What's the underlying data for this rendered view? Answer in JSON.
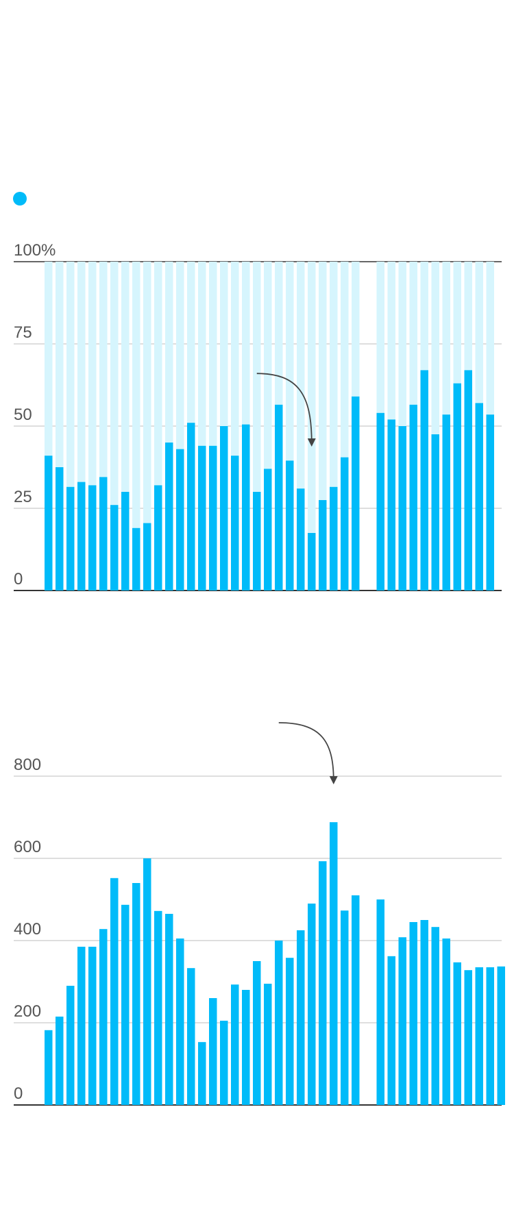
{
  "colors": {
    "bar": "#00bbf9",
    "track": "#d6f5fd",
    "grid": "#bdbdbd",
    "axis": "#333333",
    "text": "#555555",
    "arrow": "#444444",
    "legend_dot": "#00bbf9"
  },
  "legend": {
    "marker": "dot"
  },
  "chart_data": [
    {
      "type": "bar",
      "stacked_background": true,
      "ylim": [
        0,
        100
      ],
      "yticks": [
        0,
        25,
        50,
        75,
        100
      ],
      "ytick_labels": [
        "0",
        "25",
        "50",
        "75",
        "100%"
      ],
      "gap_after_index": 28,
      "values": [
        41,
        37.5,
        31.5,
        33,
        32,
        34.5,
        26,
        30,
        19,
        20.5,
        32,
        45,
        43,
        51,
        44,
        44,
        50,
        41,
        50.5,
        30,
        37,
        56.5,
        39.5,
        31,
        17.5,
        27.5,
        31.5,
        40.5,
        59,
        54,
        52,
        50,
        56.5,
        67,
        47.5,
        53.5,
        63,
        67,
        57,
        53.5
      ],
      "annotation": {
        "type": "arrow",
        "from_index": 19,
        "to_index": 24,
        "start_value": 66,
        "end_value": 45
      }
    },
    {
      "type": "bar",
      "ylim": [
        0,
        800
      ],
      "yticks": [
        0,
        200,
        400,
        600,
        800
      ],
      "ytick_labels": [
        "0",
        "200",
        "400",
        "600",
        "800"
      ],
      "gap_after_index": 28,
      "values": [
        182,
        215,
        290,
        385,
        385,
        428,
        552,
        487,
        540,
        600,
        472,
        465,
        405,
        333,
        153,
        260,
        205,
        293,
        280,
        350,
        295,
        400,
        358,
        425,
        490,
        593,
        688,
        473,
        510,
        500,
        362,
        408,
        445,
        450,
        433,
        405,
        347,
        328,
        335,
        335,
        337
      ],
      "annotation": {
        "type": "arrow",
        "from_index": 21,
        "to_index": 26,
        "start_value": 930,
        "end_value": 790
      }
    }
  ]
}
